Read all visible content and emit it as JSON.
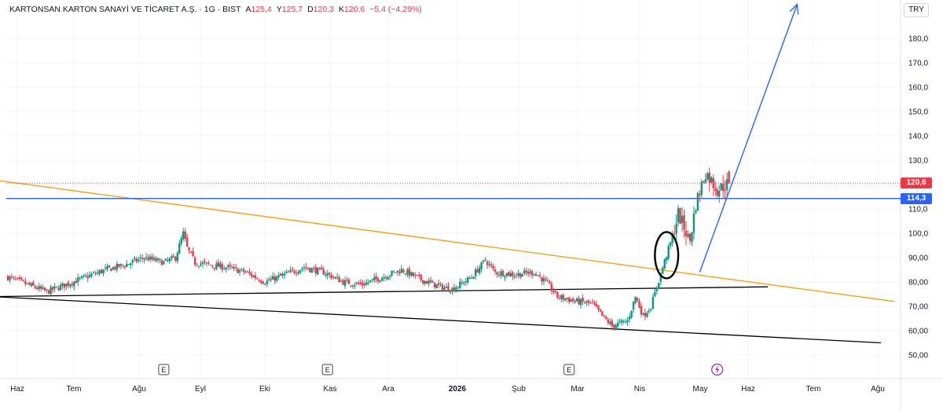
{
  "header": {
    "title": "KARTONSAN KARTON SANAYİ VE TİCARET A.Ş. · 1G · BIST",
    "open_key": "A",
    "open": "125,4",
    "high_key": "Y",
    "high": "125,7",
    "low_key": "D",
    "low": "120,3",
    "close_key": "K",
    "close": "120,6",
    "change": "−5,4 (−4,29%)"
  },
  "currency": "TRY",
  "price_badge": "120,6",
  "level_badge": "114,3",
  "colors": {
    "up": "#089981",
    "down": "#f23645",
    "blue_line": "#2962ff",
    "orange_line": "#ff9800",
    "black_line": "#000000",
    "arrow": "#2962ff"
  },
  "events": {
    "earnings_label": "E",
    "dividend_icon": "lightning-icon"
  },
  "chart_data": {
    "type": "candlestick",
    "title": "KARTONSAN KARTON SANAYİ VE TİCARET A.Ş.",
    "interval": "1G",
    "exchange": "BIST",
    "ylim": [
      45,
      195
    ],
    "y_ticks": [
      "50,00",
      "60,00",
      "70,00",
      "80,00",
      "90,00",
      "100,0",
      "110,0",
      "120,0",
      "130,0",
      "140,0",
      "150,0",
      "160,0",
      "170,0",
      "180,0"
    ],
    "x_ticks": [
      "Haz",
      "Tem",
      "Ağu",
      "Eyl",
      "Eki",
      "Kas",
      "Ara",
      "2026",
      "Şub",
      "Mar",
      "Nis",
      "May",
      "Haz",
      "Tem",
      "Ağu"
    ],
    "grid": true,
    "last_close": 120.6,
    "horizontal_level": 114.3,
    "price_path": [
      [
        0,
        82
      ],
      [
        10,
        79
      ],
      [
        20,
        76
      ],
      [
        30,
        79
      ],
      [
        40,
        82
      ],
      [
        50,
        85
      ],
      [
        60,
        87
      ],
      [
        70,
        90
      ],
      [
        80,
        88
      ],
      [
        86,
        90
      ],
      [
        90,
        100
      ],
      [
        92,
        94
      ],
      [
        96,
        88
      ],
      [
        104,
        87
      ],
      [
        112,
        86
      ],
      [
        122,
        84
      ],
      [
        132,
        80
      ],
      [
        142,
        83
      ],
      [
        152,
        86
      ],
      [
        162,
        84
      ],
      [
        172,
        80
      ],
      [
        182,
        79
      ],
      [
        192,
        82
      ],
      [
        202,
        85
      ],
      [
        212,
        81
      ],
      [
        222,
        78
      ],
      [
        228,
        77
      ],
      [
        238,
        82
      ],
      [
        245,
        89
      ],
      [
        250,
        84
      ],
      [
        260,
        83
      ],
      [
        270,
        84
      ],
      [
        276,
        80
      ],
      [
        282,
        74
      ],
      [
        292,
        72
      ],
      [
        300,
        71
      ],
      [
        305,
        66
      ],
      [
        310,
        62
      ],
      [
        318,
        64
      ],
      [
        322,
        74
      ],
      [
        326,
        66
      ],
      [
        330,
        70
      ],
      [
        336,
        86
      ],
      [
        340,
        96
      ],
      [
        344,
        108
      ],
      [
        350,
        97
      ],
      [
        353,
        112
      ],
      [
        358,
        125
      ],
      [
        364,
        118
      ],
      [
        370,
        120.6
      ]
    ],
    "drawings": [
      {
        "type": "trendline",
        "color": "orange",
        "from": [
          -8,
          122
        ],
        "to": [
          455,
          72
        ]
      },
      {
        "type": "trendline",
        "color": "black",
        "from": [
          -8,
          74
        ],
        "to": [
          390,
          78
        ]
      },
      {
        "type": "trendline",
        "color": "black",
        "from": [
          -8,
          74
        ],
        "to": [
          448,
          55
        ]
      },
      {
        "type": "horizontal",
        "color": "blue",
        "value": 114.3
      },
      {
        "type": "arrow",
        "color": "blue",
        "from": [
          355,
          84
        ],
        "to": [
          405,
          194
        ]
      },
      {
        "type": "ellipse",
        "color": "black",
        "center": [
          338,
          91
        ],
        "rx": 6,
        "ry": 9.5
      }
    ],
    "earnings_markers": [
      80,
      164,
      288
    ],
    "dividend_marker": [
      364
    ]
  }
}
